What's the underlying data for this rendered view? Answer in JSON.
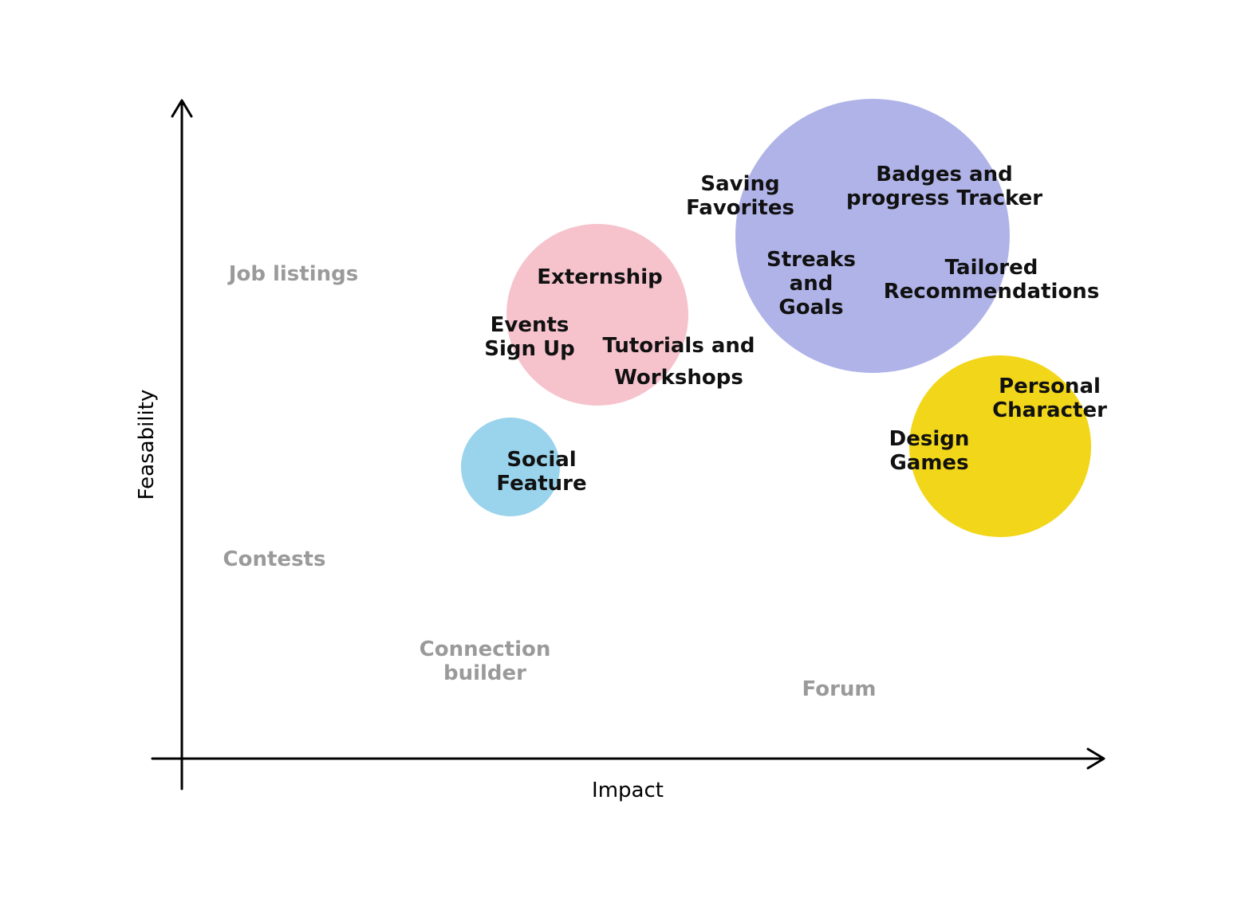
{
  "axes": {
    "x_label": "Impact",
    "y_label": "Feasability"
  },
  "colors": {
    "pink": "#f6c3cd",
    "lavender": "#b0b3e8",
    "blue": "#9ad3ec",
    "yellow": "#f2d619",
    "active_text": "#111111",
    "muted_text": "#9a9a9a",
    "axis": "#000000"
  },
  "groups": [
    {
      "id": "blue",
      "color": "#9ad3ec"
    },
    {
      "id": "pink",
      "color": "#f6c3cd"
    },
    {
      "id": "lavender",
      "color": "#b0b3e8"
    },
    {
      "id": "yellow",
      "color": "#f2d619"
    }
  ],
  "features": [
    {
      "id": "job-listings",
      "lines": [
        "Job listings"
      ],
      "status": "muted"
    },
    {
      "id": "contests",
      "lines": [
        "Contests"
      ],
      "status": "muted"
    },
    {
      "id": "connection-builder",
      "lines": [
        "Connection",
        "builder"
      ],
      "status": "muted"
    },
    {
      "id": "forum",
      "lines": [
        "Forum"
      ],
      "status": "muted"
    },
    {
      "id": "social-feature",
      "lines": [
        "Social",
        "Feature"
      ],
      "status": "active",
      "group": "blue"
    },
    {
      "id": "externship",
      "lines": [
        "Externship"
      ],
      "status": "active",
      "group": "pink"
    },
    {
      "id": "events-sign-up",
      "lines": [
        "Events",
        "Sign Up"
      ],
      "status": "active",
      "group": "pink"
    },
    {
      "id": "tutorials-workshops",
      "lines": [
        "Tutorials and",
        "Workshops"
      ],
      "status": "active",
      "group": "pink"
    },
    {
      "id": "saving-favorites",
      "lines": [
        "Saving",
        "Favorites"
      ],
      "status": "active",
      "group": "lavender"
    },
    {
      "id": "badges-progress",
      "lines": [
        "Badges and",
        "progress Tracker"
      ],
      "status": "active",
      "group": "lavender"
    },
    {
      "id": "streaks-goals",
      "lines": [
        "Streaks",
        "and",
        "Goals"
      ],
      "status": "active",
      "group": "lavender"
    },
    {
      "id": "tailored-recommendations",
      "lines": [
        "Tailored",
        "Recommendations"
      ],
      "status": "active",
      "group": "lavender"
    },
    {
      "id": "personal-character",
      "lines": [
        "Personal",
        "Character"
      ],
      "status": "active",
      "group": "yellow"
    },
    {
      "id": "design-games",
      "lines": [
        "Design",
        "Games"
      ],
      "status": "active",
      "group": "yellow"
    }
  ]
}
